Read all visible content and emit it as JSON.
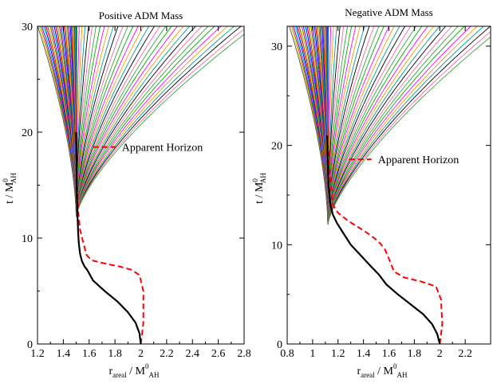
{
  "chart_data": [
    {
      "type": "line",
      "title": "Positive ADM Mass",
      "xlabel": {
        "base": "r",
        "sub": "areal",
        "mid": " / M",
        "sup": "0",
        "sub2": "AH"
      },
      "ylabel": {
        "base": "t / M",
        "sup": "0",
        "sub": "AH"
      },
      "xlim": [
        1.2,
        2.8
      ],
      "ylim": [
        0,
        30
      ],
      "xticks": [
        "1.2",
        "1.4",
        "1.6",
        "1.8",
        "2",
        "2.2",
        "2.4",
        "2.6",
        "2.8"
      ],
      "yticks": [
        "0",
        "10",
        "20",
        "30"
      ],
      "grid": false,
      "legend": {
        "position": "middle-right",
        "entries": [
          "Apparent Horizon"
        ]
      },
      "series": [
        {
          "name": "Apparent Horizon",
          "style": "dashed",
          "color": "#ff0000",
          "x": [
            2.0,
            2.02,
            2.02,
            1.99,
            1.93,
            1.84,
            1.72,
            1.62,
            1.58,
            1.56,
            1.53,
            1.515,
            1.51
          ],
          "y": [
            0,
            2,
            5,
            6.5,
            7.0,
            7.3,
            7.6,
            7.9,
            8.4,
            9.3,
            10.8,
            12.5,
            14.5
          ]
        },
        {
          "style": "solid",
          "color": "#000000",
          "x": [
            2.0,
            1.99,
            1.96,
            1.9,
            1.82,
            1.72,
            1.63,
            1.585,
            1.565,
            1.545,
            1.53,
            1.52,
            1.515,
            1.51,
            1.505,
            1.5
          ],
          "y": [
            0,
            1,
            2,
            3,
            4,
            5,
            6,
            7,
            7.3,
            7.8,
            8.5,
            9.5,
            10.5,
            12,
            14,
            20
          ]
        }
      ]
    },
    {
      "type": "line",
      "title": "Negative ADM Mass",
      "xlabel": {
        "base": "r",
        "sub": "areal",
        "mid": " / M",
        "sup": "0",
        "sub2": "AH"
      },
      "ylabel": {
        "base": "t / M",
        "sup": "0",
        "sub": "AH"
      },
      "xlim": [
        0.8,
        2.4
      ],
      "ylim": [
        0,
        32
      ],
      "xticks": [
        "0.8",
        "1",
        "1.2",
        "1.4",
        "1.6",
        "1.8",
        "2",
        "2.2"
      ],
      "yticks": [
        "0",
        "10",
        "20",
        "30"
      ],
      "grid": false,
      "legend": {
        "position": "middle-right",
        "entries": [
          "Apparent Horizon"
        ]
      },
      "series": [
        {
          "name": "Apparent Horizon",
          "style": "dashed",
          "color": "#ff0000",
          "x": [
            2.0,
            2.02,
            2.01,
            1.97,
            1.85,
            1.72,
            1.64,
            1.6,
            1.57,
            1.52,
            1.45,
            1.38,
            1.28,
            1.2,
            1.16,
            1.14,
            1.13,
            1.12
          ],
          "y": [
            0,
            2,
            4.5,
            5.8,
            6.3,
            6.7,
            7.3,
            8.6,
            9.5,
            10.3,
            11.0,
            11.6,
            12.4,
            13.2,
            14.0,
            16.5,
            18.5,
            20
          ]
        },
        {
          "style": "solid",
          "color": "#000000",
          "x": [
            2.0,
            1.98,
            1.94,
            1.87,
            1.77,
            1.67,
            1.58,
            1.52,
            1.46,
            1.38,
            1.3,
            1.24,
            1.19,
            1.16,
            1.14,
            1.125,
            1.12,
            1.115
          ],
          "y": [
            0,
            1,
            2,
            3,
            4,
            5,
            6,
            7,
            7.8,
            8.9,
            10.0,
            11.2,
            12.2,
            13.0,
            14.0,
            16,
            18,
            21
          ]
        }
      ]
    }
  ]
}
